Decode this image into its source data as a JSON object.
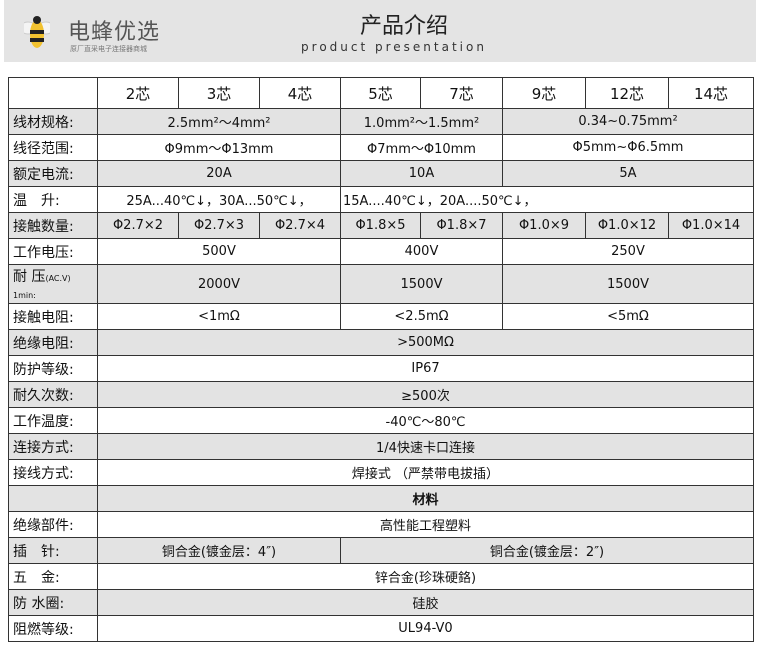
{
  "header": {
    "brand": "电蜂优选",
    "slogan": "原厂直采电子连接器商城",
    "title": "产品介绍",
    "subtitle": "product presentation"
  },
  "columns": [
    "",
    "2芯",
    "3芯",
    "4芯",
    "5芯",
    "7芯",
    "9芯",
    "12芯",
    "14芯"
  ],
  "rows": [
    {
      "label": "线材规格:",
      "cells": [
        {
          "t": "2.5mm²～4mm²",
          "s": 3
        },
        {
          "t": "1.0mm²～1.5mm²",
          "s": 2
        },
        {
          "t": "0.34~0.75mm²",
          "s": 3
        }
      ]
    },
    {
      "label": "线径范围:",
      "cells": [
        {
          "t": "Φ9mm～Φ13mm",
          "s": 3
        },
        {
          "t": "Φ7mm～Φ10mm",
          "s": 2
        },
        {
          "t": "Φ5mm~Φ6.5mm",
          "s": 3
        }
      ]
    },
    {
      "label": "额定电流:",
      "cells": [
        {
          "t": "20A",
          "s": 3
        },
        {
          "t": "10A",
          "s": 2
        },
        {
          "t": "5A",
          "s": 3
        }
      ]
    },
    {
      "label": "温　升:",
      "cells": [
        {
          "t": "25A...40℃↓，30A...50℃↓，",
          "s": 3
        },
        {
          "t": "15A....40℃↓，20A....50℃↓，",
          "s": 5,
          "left": true
        }
      ]
    },
    {
      "label": "接触数量:",
      "cells": [
        {
          "t": "Φ2.7×2",
          "s": 1
        },
        {
          "t": "Φ2.7×3",
          "s": 1
        },
        {
          "t": "Φ2.7×4",
          "s": 1
        },
        {
          "t": "Φ1.8×5",
          "s": 1
        },
        {
          "t": "Φ1.8×7",
          "s": 1
        },
        {
          "t": "Φ1.0×9",
          "s": 1
        },
        {
          "t": "Φ1.0×12",
          "s": 1
        },
        {
          "t": "Φ1.0×14",
          "s": 1
        }
      ]
    },
    {
      "label": "工作电压:",
      "cells": [
        {
          "t": "500V",
          "s": 3
        },
        {
          "t": "400V",
          "s": 2
        },
        {
          "t": "250V",
          "s": 3
        }
      ]
    },
    {
      "label": "耐 压",
      "label_note": "(AC.V)",
      "label_sub": "1min:",
      "tall": true,
      "cells": [
        {
          "t": "2000V",
          "s": 3
        },
        {
          "t": "1500V",
          "s": 2
        },
        {
          "t": "1500V",
          "s": 3
        }
      ]
    },
    {
      "label": "接触电阻:",
      "cells": [
        {
          "t": "<1mΩ",
          "s": 3
        },
        {
          "t": "<2.5mΩ",
          "s": 2
        },
        {
          "t": "<5mΩ",
          "s": 3
        }
      ]
    },
    {
      "label": "绝缘电阻:",
      "cells": [
        {
          "t": ">500MΩ",
          "s": 8
        }
      ]
    },
    {
      "label": "防护等级:",
      "cells": [
        {
          "t": "IP67",
          "s": 8
        }
      ]
    },
    {
      "label": "耐久次数:",
      "cells": [
        {
          "t": "≥500次",
          "s": 8
        }
      ]
    },
    {
      "label": "工作温度:",
      "cells": [
        {
          "t": "-40℃～80℃",
          "s": 8
        }
      ]
    },
    {
      "label": "连接方式:",
      "cells": [
        {
          "t": "1/4快速卡口连接",
          "s": 8
        }
      ]
    },
    {
      "label": "接线方式:",
      "cells": [
        {
          "t": "焊接式 （严禁带电拔插）",
          "s": 8
        }
      ]
    },
    {
      "label": "",
      "section": true,
      "cells": [
        {
          "t": "材料",
          "s": 8,
          "bold": true
        }
      ]
    },
    {
      "label": "绝缘部件:",
      "cells": [
        {
          "t": "高性能工程塑料",
          "s": 8
        }
      ]
    },
    {
      "label": "插　针:",
      "cells": [
        {
          "t": "铜合金(镀金层：4″)",
          "s": 3
        },
        {
          "t": "铜合金(镀金层：2″)",
          "s": 5
        }
      ]
    },
    {
      "label": "五　金:",
      "cells": [
        {
          "t": "锌合金(珍珠硬鉻)",
          "s": 8
        }
      ]
    },
    {
      "label": "防 水圈:",
      "cells": [
        {
          "t": "硅胶",
          "s": 8
        }
      ]
    },
    {
      "label": "阻燃等级:",
      "cells": [
        {
          "t": "UL94-V0",
          "s": 8
        }
      ]
    }
  ]
}
